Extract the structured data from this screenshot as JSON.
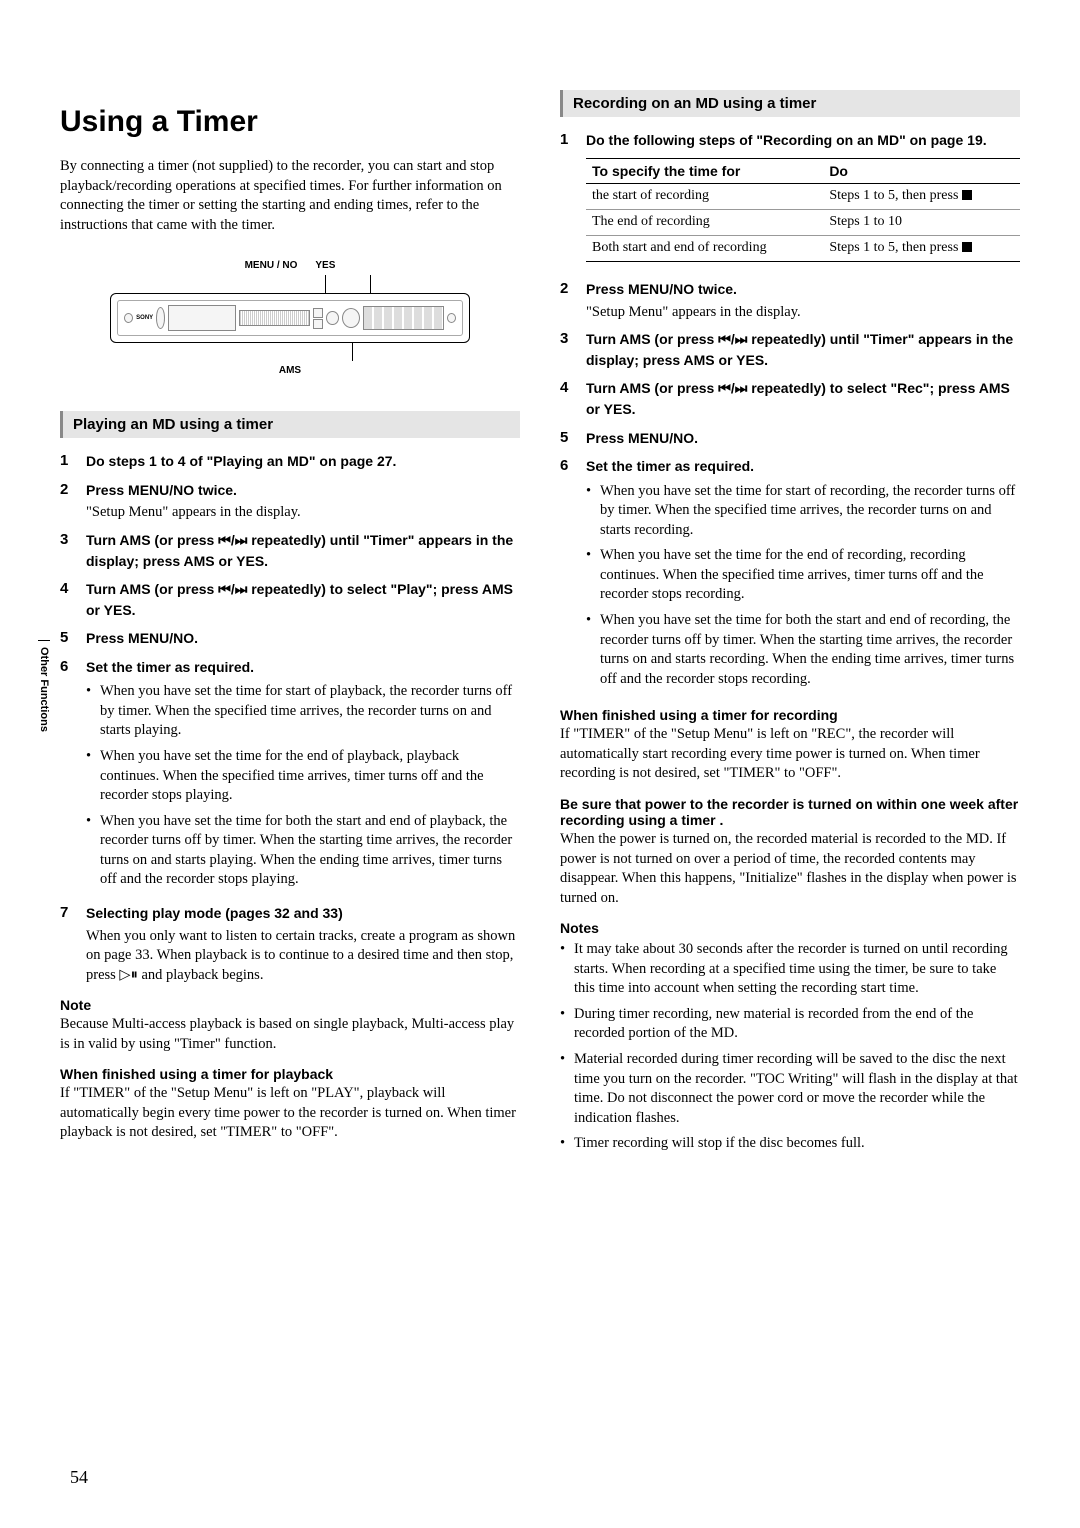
{
  "sideTab": "Other Functions",
  "pageNumber": "54",
  "left": {
    "title": "Using a Timer",
    "intro": "By connecting a timer (not supplied) to the recorder, you can start and stop playback/recording operations at specified times. For further information on connecting the timer or setting the starting and ending times, refer to the instructions that came with the timer.",
    "diagram": {
      "labelLeft": "MENU / NO",
      "labelRight": "YES",
      "labelBottom": "AMS"
    },
    "section": "Playing an MD using a timer",
    "steps": [
      {
        "n": "1",
        "title": "Do steps 1 to 4 of \"Playing an MD\" on page 27."
      },
      {
        "n": "2",
        "title": "Press MENU/NO twice.",
        "para": "\"Setup Menu\" appears in the display."
      },
      {
        "n": "3",
        "title": "Turn AMS (or press ⏮/⏭ repeatedly) until \"Timer\" appears in the display; press AMS or YES."
      },
      {
        "n": "4",
        "title": "Turn AMS (or press ⏮/⏭ repeatedly) to select \"Play\"; press AMS or YES."
      },
      {
        "n": "5",
        "title": "Press MENU/NO."
      },
      {
        "n": "6",
        "title": "Set the timer as required.",
        "bullets": [
          "When you have set the time for start of playback, the recorder turns off by timer. When the specified time arrives, the recorder turns on and starts playing.",
          "When you have set the time for the end of playback, playback continues. When the specified time arrives, timer turns off and the recorder stops playing.",
          "When you have set the time for both the start and end of playback, the recorder turns off by timer. When the starting time arrives, the recorder turns on and starts playing. When the ending time arrives, timer turns off and the recorder stops playing."
        ]
      },
      {
        "n": "7",
        "title": "Selecting play mode (pages 32 and 33)",
        "para": "When you only want to listen to certain tracks, create a program as shown on page 33. When playback is to continue to a desired time and then stop, press ▷⏸ and playback begins."
      }
    ],
    "noteHead": "Note",
    "note": "Because Multi-access playback is based on single playback, Multi-access play is in valid by using \"Timer\" function.",
    "finishHead": "When finished using a timer for playback",
    "finish": "If \"TIMER\" of the \"Setup Menu\" is left on \"PLAY\", playback will automatically begin every time power to the recorder is turned on. When timer playback is not desired, set \"TIMER\" to \"OFF\"."
  },
  "right": {
    "section": "Recording on an MD using a timer",
    "step1": {
      "n": "1",
      "title": "Do the following steps of \"Recording on an MD\" on page 19."
    },
    "table": {
      "h1": "To specify the time for",
      "h2": "Do",
      "rows": [
        {
          "c1": "the start of recording",
          "c2": "Steps 1 to 5, then press ■"
        },
        {
          "c1": "The end of recording",
          "c2": "Steps 1 to 10"
        },
        {
          "c1": "Both start and end of recording",
          "c2": "Steps 1 to 5, then press ■"
        }
      ]
    },
    "steps": [
      {
        "n": "2",
        "title": "Press MENU/NO twice.",
        "para": "\"Setup Menu\" appears in the display."
      },
      {
        "n": "3",
        "title": "Turn AMS (or press ⏮/⏭ repeatedly) until \"Timer\" appears in the display; press AMS or YES."
      },
      {
        "n": "4",
        "title": "Turn AMS (or press ⏮/⏭ repeatedly) to select \"Rec\"; press AMS or YES."
      },
      {
        "n": "5",
        "title": "Press MENU/NO."
      },
      {
        "n": "6",
        "title": "Set the timer as required.",
        "bullets": [
          "When you have set the time for start of recording, the recorder turns off by timer. When the specified time arrives, the recorder turns on and starts recording.",
          "When you have set the time for the end of recording, recording continues. When the specified time arrives, timer turns off and the recorder stops recording.",
          "When you have set the time for both the start and end of recording, the recorder turns off by timer. When the starting time arrives, the recorder turns on and starts recording. When the ending time arrives, timer turns off and the recorder stops recording."
        ]
      }
    ],
    "finishHead": "When finished using a timer for recording",
    "finish": "If \"TIMER\" of the \"Setup Menu\" is left on \"REC\", the recorder will automatically start recording every time power is turned on. When timer recording is not desired, set \"TIMER\" to \"OFF\".",
    "warnHead": "Be sure that power to the recorder is turned on within one week after recording using a timer .",
    "warn": "When the power is turned on, the recorded material is recorded to the MD. If power is not turned on over a period of time, the recorded contents may disappear. When this happens, \"Initialize\" flashes in the display when power is turned on.",
    "notesHead": "Notes",
    "notes": [
      "It may take about 30 seconds after the recorder is turned on until recording starts. When recording at a specified time using the timer, be sure to take this time into account when setting the recording start time.",
      "During timer recording, new material is recorded from the end of the recorded portion of the MD.",
      "Material recorded during timer recording will be saved to the disc the next time you turn on the recorder. \"TOC Writing\" will flash in the display at that time. Do not disconnect the power cord or move the recorder while the indication flashes.",
      "Timer recording will stop if the disc becomes full."
    ]
  }
}
